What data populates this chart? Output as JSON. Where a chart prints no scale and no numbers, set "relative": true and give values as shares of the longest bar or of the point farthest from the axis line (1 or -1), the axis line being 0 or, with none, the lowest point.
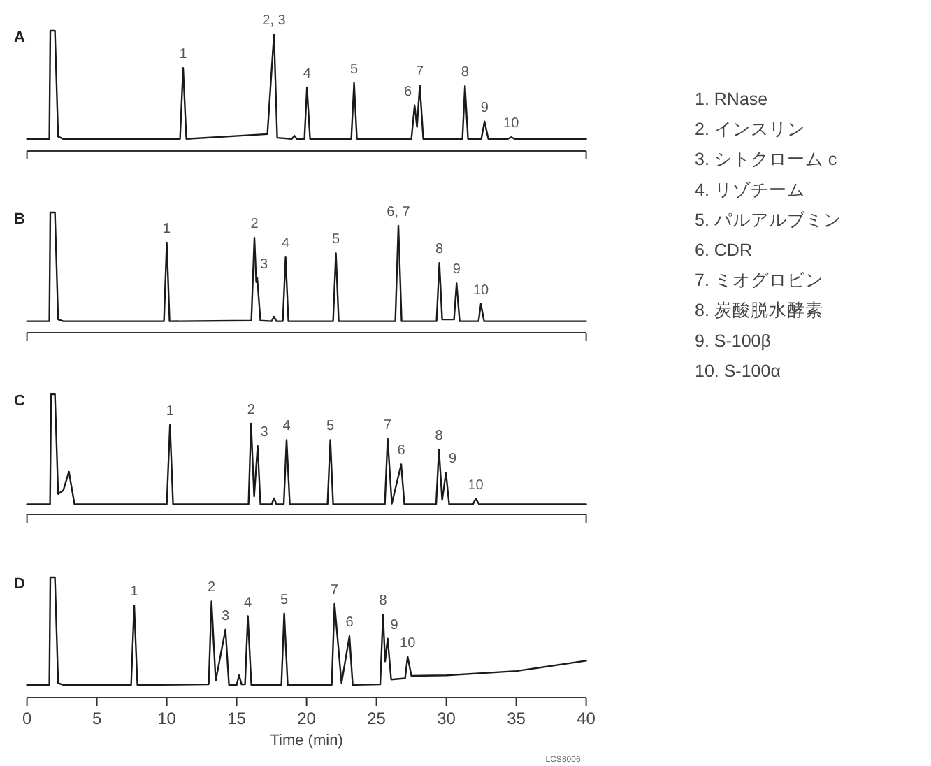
{
  "chart_data": [
    {
      "type": "line",
      "title": "A",
      "relative": true,
      "color": "#1a1a1a",
      "xlim": [
        0,
        40
      ],
      "x": [
        0,
        1.6,
        1.67,
        2.0,
        2.23,
        2.6,
        10.95,
        11.17,
        11.4,
        17.2,
        17.67,
        17.9,
        18.95,
        19.13,
        19.3,
        19.85,
        20.03,
        20.25,
        23.2,
        23.4,
        23.6,
        27.5,
        27.73,
        27.9,
        28.1,
        28.35,
        31.15,
        31.33,
        31.55,
        32.5,
        32.73,
        33.0,
        34.4,
        34.63,
        34.9,
        40
      ],
      "values": [
        0.1,
        0.1,
        1,
        1,
        0.12,
        0.1,
        0.1,
        0.69,
        0.1,
        0.14,
        0.97,
        0.11,
        0.1,
        0.127,
        0.1,
        0.1,
        0.53,
        0.1,
        0.1,
        0.565,
        0.1,
        0.1,
        0.38,
        0.2,
        0.546,
        0.1,
        0.1,
        0.54,
        0.1,
        0.1,
        0.246,
        0.1,
        0.1,
        0.115,
        0.1,
        0.1
      ],
      "annotations": [
        {
          "text": "1",
          "x": 11.17,
          "y": 0.69
        },
        {
          "text": "2, 3",
          "x": 17.67,
          "y": 0.97
        },
        {
          "text": "4",
          "x": 20.03,
          "y": 0.53
        },
        {
          "text": "5",
          "x": 23.4,
          "y": 0.565
        },
        {
          "text": "6",
          "x": 27.73,
          "y": 0.38
        },
        {
          "text": "7",
          "x": 28.1,
          "y": 0.546
        },
        {
          "text": "8",
          "x": 31.33,
          "y": 0.54
        },
        {
          "text": "9",
          "x": 32.73,
          "y": 0.246
        },
        {
          "text": "10",
          "x": 34.63,
          "y": 0.115
        }
      ]
    },
    {
      "type": "line",
      "title": "B",
      "relative": true,
      "color": "#1a1a1a",
      "xlim": [
        0,
        40
      ],
      "x": [
        0,
        1.6,
        1.67,
        2.0,
        2.23,
        2.6,
        9.8,
        10.0,
        10.2,
        16.05,
        16.27,
        16.4,
        16.47,
        16.7,
        17.5,
        17.67,
        17.85,
        18.3,
        18.5,
        18.7,
        21.9,
        22.1,
        22.3,
        26.35,
        26.57,
        26.8,
        29.3,
        29.5,
        29.7,
        30.55,
        30.73,
        30.95,
        32.3,
        32.47,
        32.7,
        40
      ],
      "values": [
        0.095,
        0.095,
        1,
        1,
        0.11,
        0.095,
        0.095,
        0.75,
        0.095,
        0.1,
        0.79,
        0.42,
        0.456,
        0.1,
        0.095,
        0.133,
        0.095,
        0.095,
        0.627,
        0.095,
        0.095,
        0.66,
        0.095,
        0.095,
        0.89,
        0.095,
        0.095,
        0.58,
        0.11,
        0.11,
        0.41,
        0.095,
        0.095,
        0.24,
        0.095,
        0.095
      ],
      "annotations": [
        {
          "text": "1",
          "x": 10.0,
          "y": 0.75
        },
        {
          "text": "2",
          "x": 16.27,
          "y": 0.79
        },
        {
          "text": "3",
          "x": 16.47,
          "y": 0.456
        },
        {
          "text": "4",
          "x": 18.5,
          "y": 0.627
        },
        {
          "text": "5",
          "x": 22.1,
          "y": 0.66
        },
        {
          "text": "6, 7",
          "x": 26.57,
          "y": 0.89
        },
        {
          "text": "8",
          "x": 29.5,
          "y": 0.58
        },
        {
          "text": "9",
          "x": 30.73,
          "y": 0.41
        },
        {
          "text": "10",
          "x": 32.47,
          "y": 0.24
        }
      ]
    },
    {
      "type": "line",
      "title": "C",
      "relative": true,
      "color": "#1a1a1a",
      "xlim": [
        0,
        40
      ],
      "x": [
        0,
        1.65,
        1.73,
        2.0,
        2.23,
        2.6,
        3.0,
        3.4,
        10.0,
        10.23,
        10.45,
        15.85,
        16.03,
        16.25,
        16.5,
        16.7,
        17.5,
        17.67,
        17.85,
        18.37,
        18.57,
        18.8,
        21.5,
        21.7,
        21.9,
        25.6,
        25.8,
        26.1,
        26.77,
        27.0,
        29.27,
        29.47,
        29.7,
        29.97,
        30.2,
        31.9,
        32.1,
        32.35,
        40
      ],
      "values": [
        0.084,
        0.084,
        1,
        1,
        0.17,
        0.2,
        0.355,
        0.084,
        0.084,
        0.744,
        0.084,
        0.084,
        0.756,
        0.15,
        0.57,
        0.084,
        0.084,
        0.134,
        0.084,
        0.084,
        0.62,
        0.084,
        0.084,
        0.62,
        0.084,
        0.084,
        0.63,
        0.09,
        0.416,
        0.084,
        0.084,
        0.54,
        0.12,
        0.347,
        0.084,
        0.084,
        0.13,
        0.084,
        0.084
      ],
      "annotations": [
        {
          "text": "1",
          "x": 10.23,
          "y": 0.744
        },
        {
          "text": "2",
          "x": 16.03,
          "y": 0.756
        },
        {
          "text": "3",
          "x": 16.5,
          "y": 0.57
        },
        {
          "text": "4",
          "x": 18.57,
          "y": 0.62
        },
        {
          "text": "5",
          "x": 21.7,
          "y": 0.62
        },
        {
          "text": "7",
          "x": 25.8,
          "y": 0.63
        },
        {
          "text": "6",
          "x": 26.77,
          "y": 0.416
        },
        {
          "text": "8",
          "x": 29.47,
          "y": 0.54
        },
        {
          "text": "9",
          "x": 29.97,
          "y": 0.347
        },
        {
          "text": "10",
          "x": 32.1,
          "y": 0.13
        }
      ]
    },
    {
      "type": "line",
      "title": "D",
      "relative": true,
      "color": "#1a1a1a",
      "xlim": [
        0,
        40
      ],
      "xticks": [
        0,
        5,
        10,
        15,
        20,
        25,
        30,
        35,
        40
      ],
      "xlabel": "Time (min)",
      "x": [
        0,
        1.6,
        1.67,
        2.0,
        2.23,
        2.6,
        7.45,
        7.67,
        7.9,
        13.0,
        13.2,
        13.5,
        14.2,
        14.45,
        15.0,
        15.17,
        15.35,
        15.6,
        15.8,
        16.05,
        18.2,
        18.4,
        18.65,
        21.8,
        22.0,
        22.5,
        23.07,
        23.3,
        25.27,
        25.47,
        25.62,
        25.8,
        26.05,
        27.05,
        27.23,
        27.5,
        30,
        35,
        40
      ],
      "values": [
        0.105,
        0.105,
        1,
        1,
        0.12,
        0.105,
        0.105,
        0.766,
        0.105,
        0.11,
        0.8,
        0.14,
        0.565,
        0.105,
        0.105,
        0.185,
        0.11,
        0.11,
        0.677,
        0.105,
        0.105,
        0.7,
        0.105,
        0.105,
        0.78,
        0.12,
        0.51,
        0.105,
        0.11,
        0.69,
        0.3,
        0.49,
        0.15,
        0.16,
        0.34,
        0.18,
        0.185,
        0.22,
        0.306
      ],
      "annotations": [
        {
          "text": "1",
          "x": 7.67,
          "y": 0.766
        },
        {
          "text": "2",
          "x": 13.2,
          "y": 0.8
        },
        {
          "text": "3",
          "x": 14.2,
          "y": 0.565
        },
        {
          "text": "4",
          "x": 15.8,
          "y": 0.677
        },
        {
          "text": "5",
          "x": 18.4,
          "y": 0.7
        },
        {
          "text": "7",
          "x": 22.0,
          "y": 0.78
        },
        {
          "text": "6",
          "x": 23.07,
          "y": 0.51
        },
        {
          "text": "8",
          "x": 25.47,
          "y": 0.69
        },
        {
          "text": "9",
          "x": 25.8,
          "y": 0.49
        },
        {
          "text": "10",
          "x": 27.23,
          "y": 0.34
        },
        "LCS8006"
      ]
    },
    {
      "type": "other",
      "annotations": [
        "1.  RNase",
        "2.  インスリン",
        "3.  シトクローム c",
        "4.  リゾチーム",
        "5.  パルアルブミン",
        "6.  CDR",
        "7.  ミオグロビン",
        "8.  炭酸脱水酵素",
        "9.  S-100β",
        "10.  S-100α"
      ]
    }
  ]
}
